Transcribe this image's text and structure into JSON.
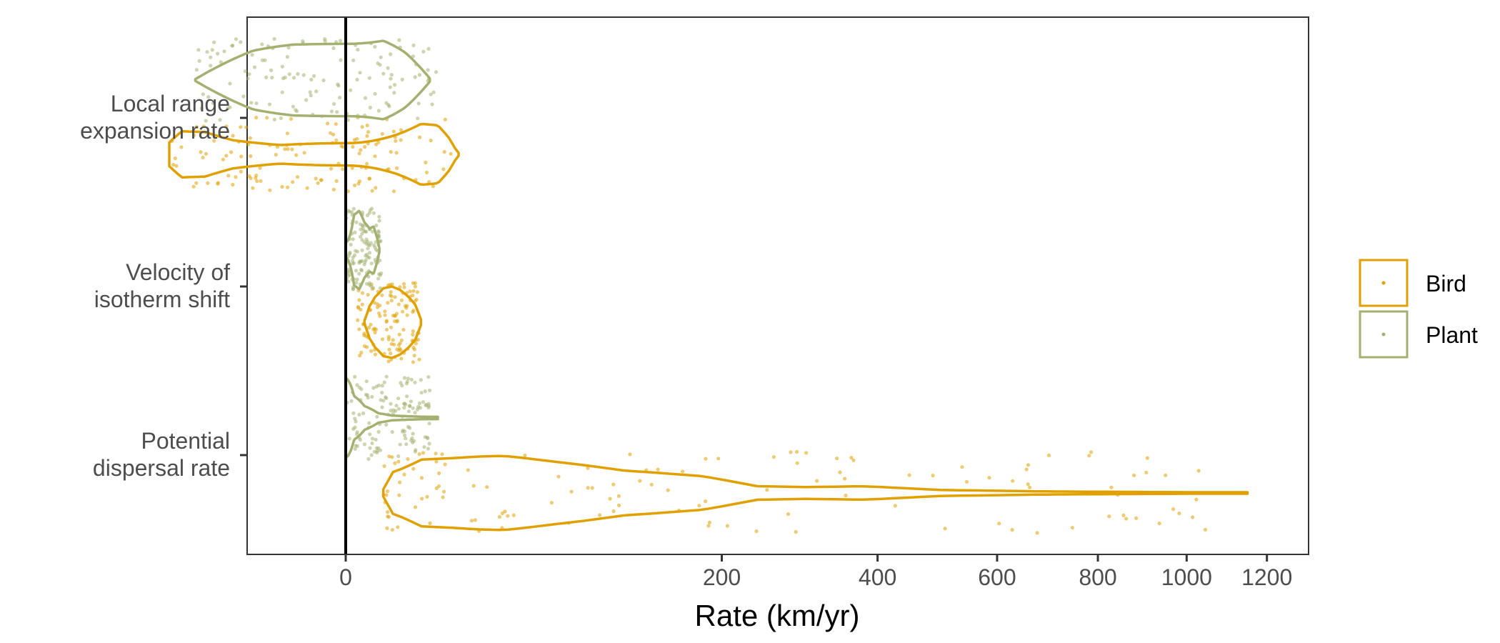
{
  "chart_data": {
    "type": "violin",
    "xlabel": "Rate (km/yr)",
    "x_scale": "square-root (signed)",
    "xlim": [
      -140,
      1250
    ],
    "x_ticks": [
      0,
      200,
      400,
      600,
      800,
      1000,
      1200
    ],
    "categories": [
      {
        "label": [
          "Local range",
          "expansion rate"
        ]
      },
      {
        "label": [
          "Velocity of",
          "isotherm shift"
        ]
      },
      {
        "label": [
          "Potential",
          "dispersal rate"
        ]
      }
    ],
    "series": [
      {
        "name": "Bird",
        "color": "#E0A000"
      },
      {
        "name": "Plant",
        "color": "#A3B070"
      }
    ],
    "legend": {
      "position": "right",
      "items": [
        "Bird",
        "Plant"
      ]
    },
    "zero_line": true,
    "groups": [
      {
        "category": 0,
        "series": "Bird",
        "range": [
          -44,
          18
        ],
        "point_range": [
          -44,
          16
        ],
        "profile": [
          [
            -44,
            0.32
          ],
          [
            -38,
            0.62
          ],
          [
            -28,
            0.6
          ],
          [
            -18,
            0.38
          ],
          [
            -6,
            0.25
          ],
          [
            0,
            0.3
          ],
          [
            4,
            0.55
          ],
          [
            8,
            0.82
          ],
          [
            12,
            0.78
          ],
          [
            15,
            0.45
          ],
          [
            17,
            0.15
          ],
          [
            18,
            0.04
          ]
        ]
      },
      {
        "category": 0,
        "series": "Plant",
        "range": [
          -32,
          10
        ],
        "point_range": [
          -32,
          12
        ],
        "profile": [
          [
            -32,
            0.02
          ],
          [
            -22,
            0.38
          ],
          [
            -12,
            0.75
          ],
          [
            -4,
            0.9
          ],
          [
            0,
            0.92
          ],
          [
            2,
            1.0
          ],
          [
            5,
            0.7
          ],
          [
            8,
            0.3
          ],
          [
            10,
            0.04
          ]
        ]
      },
      {
        "category": 1,
        "series": "Bird",
        "range": [
          0.5,
          8
        ],
        "point_range": [
          0.2,
          7.8
        ],
        "profile": [
          [
            0.5,
            0.05
          ],
          [
            0.8,
            0.45
          ],
          [
            1.2,
            0.7
          ],
          [
            2,
            0.95
          ],
          [
            3,
            1.0
          ],
          [
            4.2,
            0.9
          ],
          [
            5.5,
            0.72
          ],
          [
            6.8,
            0.5
          ],
          [
            8,
            0.08
          ]
        ]
      },
      {
        "category": 1,
        "series": "Plant",
        "range": [
          0,
          1.6
        ],
        "point_range": [
          0,
          1.8
        ],
        "profile": [
          [
            0,
            0.2
          ],
          [
            0.1,
            0.9
          ],
          [
            0.25,
            1.0
          ],
          [
            0.5,
            0.7
          ],
          [
            0.8,
            0.55
          ],
          [
            1.1,
            0.6
          ],
          [
            1.4,
            0.3
          ],
          [
            1.6,
            0.05
          ]
        ]
      },
      {
        "category": 2,
        "series": "Bird",
        "range": [
          2,
          1150
        ],
        "point_range": [
          2,
          1150
        ],
        "profile": [
          [
            2,
            0.1
          ],
          [
            3,
            0.55
          ],
          [
            8,
            0.9
          ],
          [
            25,
            0.98
          ],
          [
            35,
            1.0
          ],
          [
            60,
            0.85
          ],
          [
            110,
            0.6
          ],
          [
            180,
            0.45
          ],
          [
            240,
            0.18
          ],
          [
            300,
            0.16
          ],
          [
            380,
            0.18
          ],
          [
            500,
            0.08
          ],
          [
            700,
            0.04
          ],
          [
            1000,
            0.02
          ],
          [
            1150,
            0.02
          ]
        ]
      },
      {
        "category": 2,
        "series": "Plant",
        "range": [
          0,
          12
        ],
        "point_range": [
          0,
          10
        ],
        "profile": [
          [
            0,
            1.0
          ],
          [
            0.02,
            0.9
          ],
          [
            0.1,
            0.55
          ],
          [
            0.5,
            0.3
          ],
          [
            1.5,
            0.12
          ],
          [
            3,
            0.06
          ],
          [
            6,
            0.04
          ],
          [
            9,
            0.03
          ],
          [
            12,
            0.03
          ]
        ]
      }
    ]
  }
}
